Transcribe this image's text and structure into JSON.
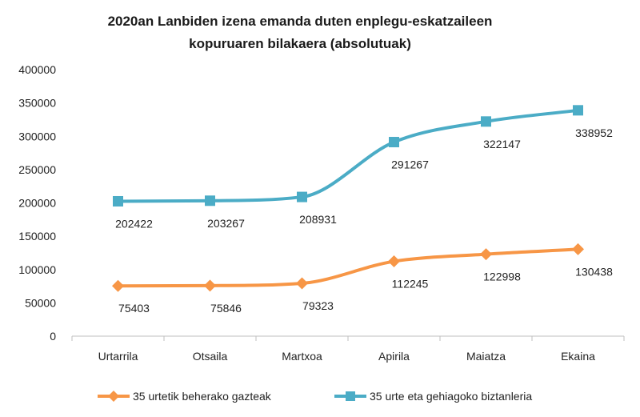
{
  "chart_data": {
    "type": "line",
    "title_lines": [
      "2020an Lanbiden izena emanda duten enplegu-eskatzaileen",
      "kopuruaren bilakaera (absolutuak)"
    ],
    "categories": [
      "Urtarrila",
      "Otsaila",
      "Martxoa",
      "Apirila",
      "Maiatza",
      "Ekaina"
    ],
    "ylim": [
      0,
      400000
    ],
    "yticks": [
      "0",
      "50000",
      "100000",
      "150000",
      "200000",
      "250000",
      "300000",
      "350000",
      "400000"
    ],
    "grid": false,
    "smooth": true,
    "legend_position": "bottom",
    "series": [
      {
        "name": "35 urtetik beherako gazteak",
        "values": [
          75403,
          75846,
          79323,
          112245,
          122998,
          130438
        ],
        "labels": [
          "75403",
          "75846",
          "79323",
          "112245",
          "122998",
          "130438"
        ],
        "color": "#f79646",
        "marker": "diamond"
      },
      {
        "name": "35 urte eta gehiagoko biztanleria",
        "values": [
          202422,
          203267,
          208931,
          291267,
          322147,
          338952
        ],
        "labels": [
          "202422",
          "203267",
          "208931",
          "291267",
          "322147",
          "338952"
        ],
        "color": "#4bacc6",
        "marker": "square"
      }
    ]
  }
}
